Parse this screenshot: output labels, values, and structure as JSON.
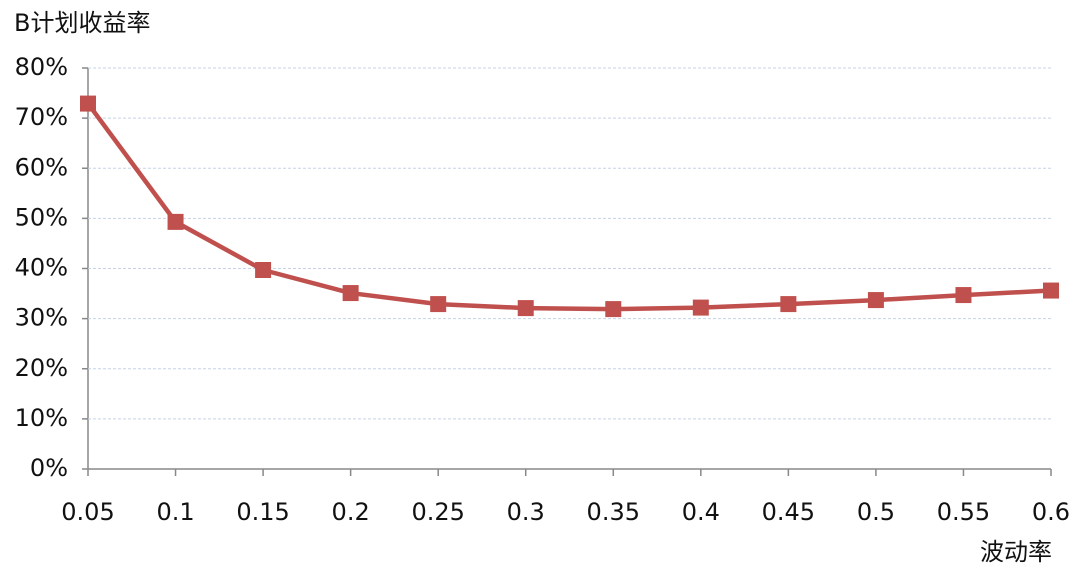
{
  "chart_data": {
    "type": "line",
    "y_label": "B计划收益率",
    "x_label": "波动率",
    "x": [
      0.05,
      0.1,
      0.15,
      0.2,
      0.25,
      0.3,
      0.35,
      0.4,
      0.45,
      0.5,
      0.55,
      0.6
    ],
    "series": [
      {
        "color": "#c0504d",
        "values": [
          72.9,
          49.3,
          39.7,
          35.1,
          32.9,
          32.1,
          31.9,
          32.2,
          32.9,
          33.7,
          34.7,
          35.6
        ]
      }
    ],
    "xlim": [
      0.05,
      0.6
    ],
    "xticks": [
      0.05,
      0.1,
      0.15,
      0.2,
      0.25,
      0.3,
      0.35,
      0.4,
      0.45,
      0.5,
      0.55,
      0.6
    ],
    "ylim": [
      0,
      80
    ],
    "yticks": [
      {
        "value": 0,
        "label": "0%"
      },
      {
        "value": 10,
        "label": "10%"
      },
      {
        "value": 20,
        "label": "20%"
      },
      {
        "value": 30,
        "label": "30%"
      },
      {
        "value": 40,
        "label": "40%"
      },
      {
        "value": 50,
        "label": "50%"
      },
      {
        "value": 60,
        "label": "60%"
      },
      {
        "value": 70,
        "label": "70%"
      },
      {
        "value": 80,
        "label": "80%"
      }
    ],
    "grid": true
  }
}
